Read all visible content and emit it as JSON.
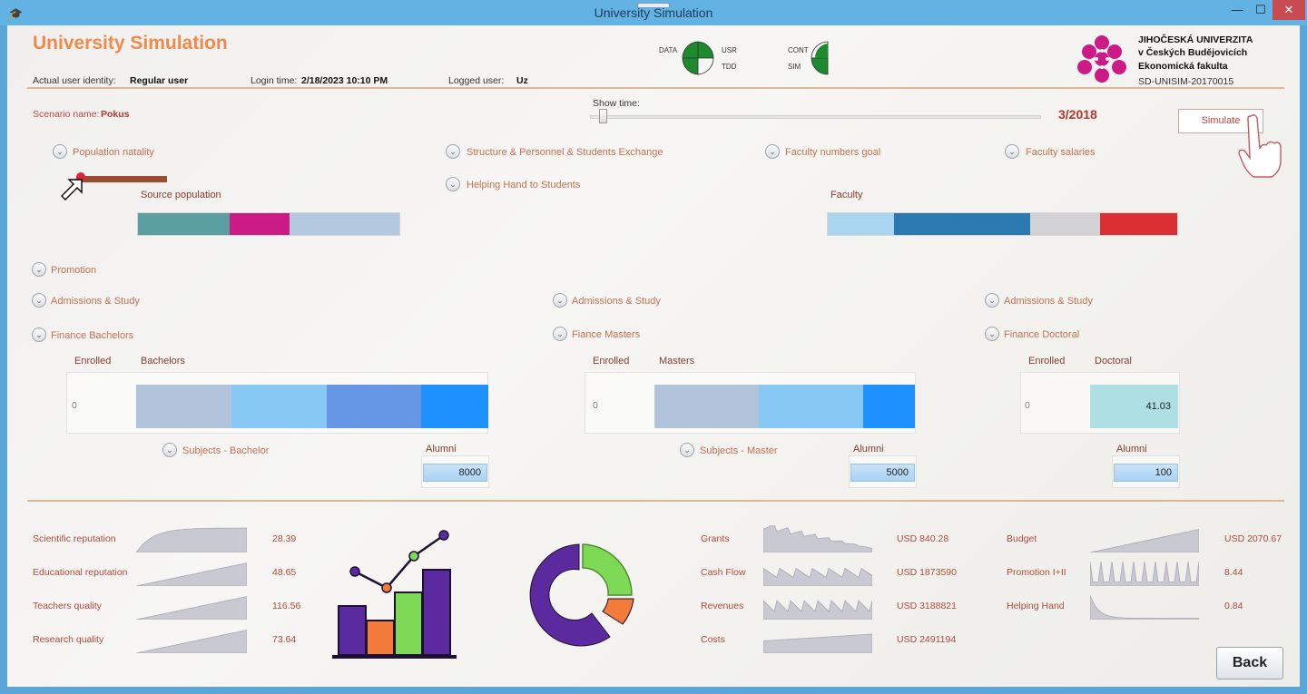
{
  "window": {
    "title": "University Simulation",
    "minimize": "—",
    "maximize": "☐",
    "close": "✕",
    "icon": "mortarboard-icon"
  },
  "header": {
    "app_title": "University Simulation",
    "identity_label": "Actual user identity:",
    "identity_value": "Regular user",
    "login_label": "Login time:",
    "login_value": "2/18/2023 10:10 PM",
    "logged_label": "Logged user:",
    "logged_value": "Uz",
    "indicators": {
      "data": "DATA",
      "usr": "USR",
      "tdd": "TDD",
      "cont": "CONT",
      "sim": "SIM"
    },
    "university": {
      "line1": "JIHOČESKÁ UNIVERZITA",
      "line2": "v Českých Budějovicích",
      "line3": "Ekonomická fakulta",
      "code": "SD-UNISIM-20170015"
    }
  },
  "scenario": {
    "label": "Scenario name:",
    "value": "Pokus"
  },
  "time": {
    "label": "Show time:",
    "value": "3/2018",
    "slider_fraction": 0.03
  },
  "simulate_label": "Simulate",
  "back_label": "Back",
  "sections_top": {
    "population_natality": "Population natality",
    "structure": "Structure & Personnel & Students Exchange",
    "faculty_goal": "Faculty numbers goal",
    "faculty_salaries": "Faculty salaries",
    "helping_hand": "Helping Hand to Students",
    "source_population": "Source population",
    "faculty": "Faculty"
  },
  "source_population_segments": [
    {
      "color": "#5b9fa1",
      "fraction": 0.35
    },
    {
      "color": "#cc1a86",
      "fraction": 0.23
    },
    {
      "color": "#b4c8df",
      "fraction": 0.42
    }
  ],
  "faculty_segments": [
    {
      "color": "#a9d5f1",
      "fraction": 0.19
    },
    {
      "color": "#2a79b0",
      "fraction": 0.39
    },
    {
      "color": "#d2d2d4",
      "fraction": 0.2
    },
    {
      "color": "#dc2f33",
      "fraction": 0.22
    }
  ],
  "promotion": "Promotion",
  "levels": {
    "bachelor": {
      "admissions": "Admissions & Study",
      "finance": "Finance Bachelors",
      "enrolled": "Enrolled",
      "title": "Bachelors",
      "enrolled_value": "0",
      "subjects": "Subjects - Bachelor",
      "alumni": "Alumni",
      "alumni_value": "8000",
      "segments": [
        {
          "color": "#b2c3dc",
          "fraction": 0.27
        },
        {
          "color": "#87c9f4",
          "fraction": 0.27
        },
        {
          "color": "#6696e6",
          "fraction": 0.27
        },
        {
          "color": "#1e90ff",
          "fraction": 0.19
        }
      ]
    },
    "master": {
      "admissions": "Admissions & Study",
      "finance": "Fiance Masters",
      "enrolled": "Enrolled",
      "title": "Masters",
      "enrolled_value": "0",
      "subjects": "Subjects - Master",
      "alumni": "Alumni",
      "alumni_value": "5000",
      "segments": [
        {
          "color": "#b2c3dc",
          "fraction": 0.4
        },
        {
          "color": "#87c9f4",
          "fraction": 0.4
        },
        {
          "color": "#1e90ff",
          "fraction": 0.2
        }
      ]
    },
    "doctoral": {
      "admissions": "Admissions & Study",
      "finance": "Finance Doctoral",
      "enrolled": "Enrolled",
      "title": "Doctoral",
      "enrolled_value": "0",
      "value": "41.03",
      "alumni": "Alumni",
      "alumni_value": "100"
    }
  },
  "metrics_left": [
    {
      "label": "Scientific reputation",
      "value": "28.39"
    },
    {
      "label": "Educational reputation",
      "value": "48.65"
    },
    {
      "label": "Teachers quality",
      "value": "116.56"
    },
    {
      "label": "Research quality",
      "value": "73.64"
    }
  ],
  "metrics_mid": [
    {
      "label": "Grants",
      "value": "USD 840.28"
    },
    {
      "label": "Cash Flow",
      "value": "USD 1873590"
    },
    {
      "label": "Revenues",
      "value": "USD 3188821"
    },
    {
      "label": "Costs",
      "value": "USD 2491194"
    }
  ],
  "metrics_right": [
    {
      "label": "Budget",
      "value": "USD 2070.67"
    },
    {
      "label": "Promotion I+II",
      "value": "8.44"
    },
    {
      "label": "Helping Hand",
      "value": "0.84"
    }
  ],
  "colors": {
    "accent": "#f08a4b",
    "section": "#c7704f",
    "metric": "#b24a3a",
    "indicator_green": "#1e8a2e",
    "logo": "#cc1a86"
  }
}
